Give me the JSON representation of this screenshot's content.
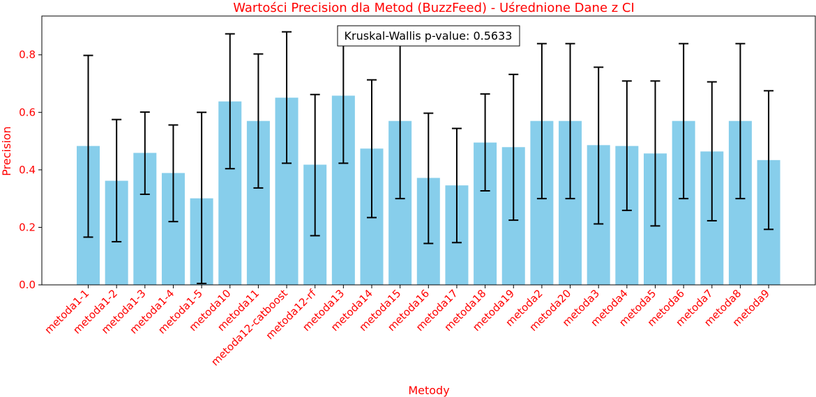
{
  "chart_data": {
    "type": "bar",
    "title": "Wartości Precision dla Metod (BuzzFeed) - Uśrednione Dane z CI",
    "xlabel": "Metody",
    "ylabel": "Precision",
    "ylim": [
      0,
      0.935
    ],
    "yticks": [
      0.0,
      0.2,
      0.4,
      0.6,
      0.8
    ],
    "ytick_labels": [
      "0.0",
      "0.2",
      "0.4",
      "0.6",
      "0.8"
    ],
    "grid": false,
    "bar_color": "#87ceeb",
    "errorbar_color": "#000000",
    "text_color": "#ff0000",
    "annotation": "Kruskal-Wallis p-value: 0.5633",
    "categories": [
      "metoda1-1",
      "metoda1-2",
      "metoda1-3",
      "metoda1-4",
      "metoda1-5",
      "metoda10",
      "metoda11",
      "metoda12-catboost",
      "metoda12-rf",
      "metoda13",
      "metoda14",
      "metoda15",
      "metoda16",
      "metoda17",
      "metoda18",
      "metoda19",
      "metoda2",
      "metoda20",
      "metoda3",
      "metoda4",
      "metoda5",
      "metoda6",
      "metoda7",
      "metoda8",
      "metoda9"
    ],
    "values": [
      0.483,
      0.362,
      0.459,
      0.389,
      0.301,
      0.638,
      0.57,
      0.651,
      0.418,
      0.658,
      0.474,
      0.57,
      0.372,
      0.346,
      0.495,
      0.479,
      0.57,
      0.57,
      0.486,
      0.483,
      0.457,
      0.57,
      0.464,
      0.57,
      0.434
    ],
    "ci_low": [
      0.166,
      0.15,
      0.315,
      0.22,
      0.005,
      0.404,
      0.337,
      0.423,
      0.171,
      0.423,
      0.234,
      0.3,
      0.144,
      0.147,
      0.327,
      0.225,
      0.3,
      0.3,
      0.212,
      0.259,
      0.205,
      0.3,
      0.223,
      0.3,
      0.193
    ],
    "ci_high": [
      0.798,
      0.575,
      0.601,
      0.556,
      0.6,
      0.873,
      0.803,
      0.88,
      0.662,
      0.893,
      0.713,
      0.839,
      0.597,
      0.544,
      0.664,
      0.732,
      0.839,
      0.839,
      0.757,
      0.709,
      0.709,
      0.839,
      0.706,
      0.839,
      0.675
    ]
  }
}
